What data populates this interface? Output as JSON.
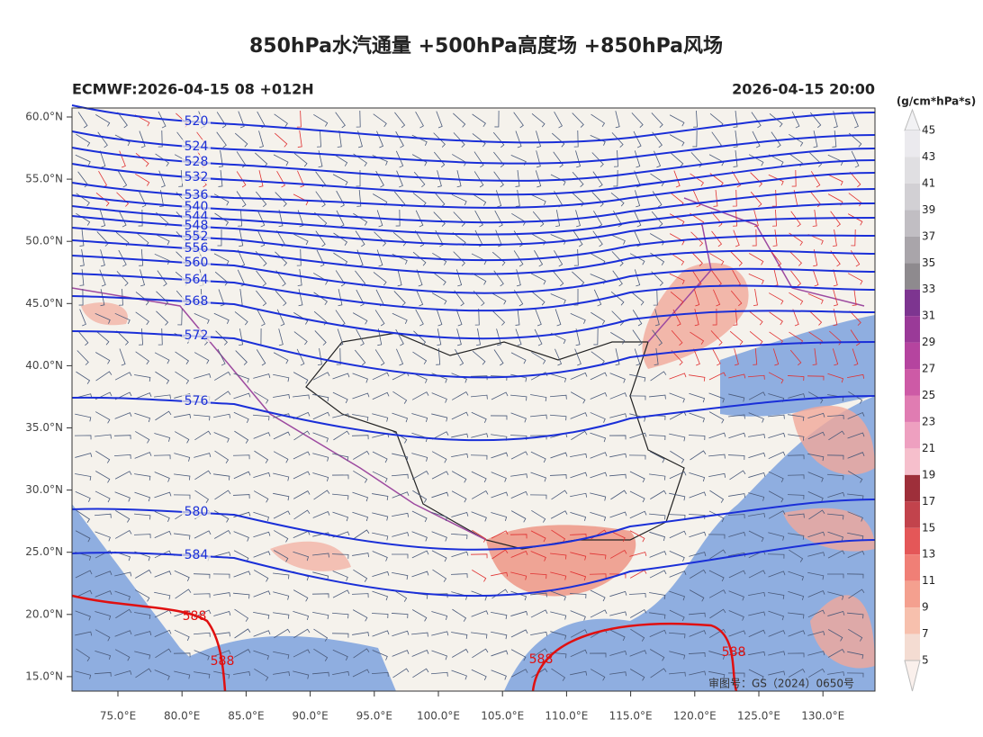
{
  "header": {
    "title": "850hPa水汽通量 +500hPa高度场 +850hPa风场",
    "left": "ECMWF:2026-04-15 08 +012H",
    "right": "2026-04-15 20:00"
  },
  "map": {
    "lat_labels": [
      "60.0°N",
      "55.0°N",
      "50.0°N",
      "45.0°N",
      "40.0°N",
      "35.0°N",
      "30.0°N",
      "25.0°N",
      "20.0°N",
      "15.0°N"
    ],
    "lon_labels": [
      "75.0°E",
      "80.0°E",
      "85.0°E",
      "90.0°E",
      "95.0°E",
      "100.0°E",
      "105.0°E",
      "110.0°E",
      "115.0°E",
      "120.0°E",
      "125.0°E",
      "130.0°E"
    ],
    "contour_labels": [
      "520",
      "524",
      "528",
      "532",
      "536",
      "540",
      "544",
      "548",
      "552",
      "556",
      "560",
      "564",
      "568",
      "572",
      "576",
      "580",
      "584",
      "588",
      "588",
      "588",
      "588"
    ],
    "watermark": "审图号：GS（2024）0650号"
  },
  "colorbar": {
    "unit": "(g/cm*hPa*s)",
    "labels": [
      45,
      43,
      41,
      39,
      37,
      35,
      33,
      31,
      29,
      27,
      25,
      23,
      21,
      19,
      17,
      15,
      13,
      11,
      9,
      7,
      5
    ],
    "colors": [
      "#ebeaee",
      "#e0dfe2",
      "#d2d0d4",
      "#c1bec3",
      "#a9a5aa",
      "#8e8a8e",
      "#7d3590",
      "#9a3a98",
      "#b5449f",
      "#cd5aa6",
      "#e07cb2",
      "#eea0c0",
      "#f6bfcc",
      "#9e2f3a",
      "#c2434c",
      "#e45758",
      "#f07f76",
      "#f4a08f",
      "#f7c0ad",
      "#f4dcd2"
    ]
  }
}
